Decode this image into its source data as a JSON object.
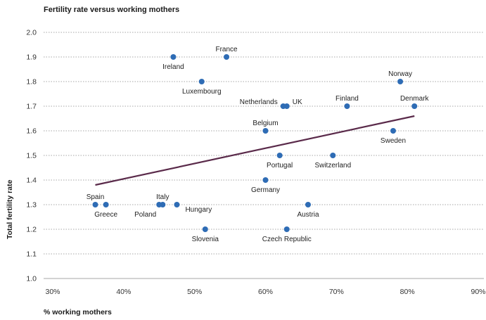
{
  "chart_data": {
    "type": "scatter",
    "title": "Fertility rate versus working mothers",
    "xlabel": "% working mothers",
    "ylabel": "Total fertility rate",
    "xlim": [
      30,
      90
    ],
    "ylim": [
      1.0,
      2.0
    ],
    "x_ticks": [
      "30%",
      "40%",
      "50%",
      "60%",
      "70%",
      "80%",
      "90%"
    ],
    "y_ticks": [
      "1.0",
      "1.1",
      "1.2",
      "1.3",
      "1.4",
      "1.5",
      "1.6",
      "1.7",
      "1.8",
      "1.9",
      "2.0"
    ],
    "grid": "horizontal dotted",
    "point_color": "#2e6cb5",
    "trend_color": "#5a2a4a",
    "trendline": [
      {
        "x": 36,
        "y": 1.38
      },
      {
        "x": 81,
        "y": 1.66
      }
    ],
    "points": [
      {
        "name": "France",
        "x": 54.5,
        "y": 1.9,
        "label_pos": "above"
      },
      {
        "name": "Ireland",
        "x": 47,
        "y": 1.9,
        "label_pos": "below"
      },
      {
        "name": "Norway",
        "x": 79,
        "y": 1.8,
        "label_pos": "above"
      },
      {
        "name": "Luxembourg",
        "x": 51,
        "y": 1.8,
        "label_pos": "below"
      },
      {
        "name": "Netherlands",
        "x": 62.5,
        "y": 1.7,
        "label_pos": "left"
      },
      {
        "name": "UK",
        "x": 63,
        "y": 1.7,
        "label_pos": "right"
      },
      {
        "name": "Finland",
        "x": 71.5,
        "y": 1.7,
        "label_pos": "above"
      },
      {
        "name": "Denmark",
        "x": 81,
        "y": 1.7,
        "label_pos": "above"
      },
      {
        "name": "Belgium",
        "x": 60,
        "y": 1.6,
        "label_pos": "above"
      },
      {
        "name": "Sweden",
        "x": 78,
        "y": 1.6,
        "label_pos": "below"
      },
      {
        "name": "Portugal",
        "x": 62,
        "y": 1.5,
        "label_pos": "below"
      },
      {
        "name": "Switzerland",
        "x": 69.5,
        "y": 1.5,
        "label_pos": "below"
      },
      {
        "name": "Germany",
        "x": 60,
        "y": 1.4,
        "label_pos": "below"
      },
      {
        "name": "Spain",
        "x": 36,
        "y": 1.3,
        "label_pos": "above"
      },
      {
        "name": "Greece",
        "x": 37.5,
        "y": 1.3,
        "label_pos": "below"
      },
      {
        "name": "Italy",
        "x": 45.5,
        "y": 1.3,
        "label_pos": "above"
      },
      {
        "name": "Poland",
        "x": 45,
        "y": 1.3,
        "label_pos": "below-left"
      },
      {
        "name": "Hungary",
        "x": 47.5,
        "y": 1.3,
        "label_pos": "below-right"
      },
      {
        "name": "Austria",
        "x": 66,
        "y": 1.3,
        "label_pos": "below"
      },
      {
        "name": "Slovenia",
        "x": 51.5,
        "y": 1.2,
        "label_pos": "below"
      },
      {
        "name": "Czech Republic",
        "x": 63,
        "y": 1.2,
        "label_pos": "below"
      }
    ]
  }
}
